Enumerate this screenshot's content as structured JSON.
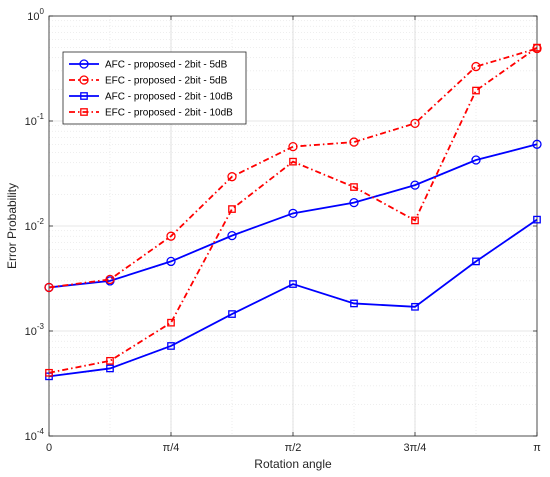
{
  "chart_data": {
    "type": "line",
    "title": "",
    "xlabel": "Rotation angle",
    "ylabel": "Error Probability",
    "xscale": "linear",
    "yscale": "log",
    "xlim": [
      0,
      3.14159
    ],
    "ylim": [
      0.0001,
      1
    ],
    "grid": true,
    "legend_position": "top-left",
    "x_ticks": [
      {
        "value": 0,
        "label": "0"
      },
      {
        "value": 0.785398,
        "label": "π/4"
      },
      {
        "value": 1.570796,
        "label": "π/2"
      },
      {
        "value": 2.356194,
        "label": "3π/4"
      },
      {
        "value": 3.141593,
        "label": "π"
      }
    ],
    "y_ticks": [
      {
        "value": 0.0001,
        "base": "10",
        "exp": "-4"
      },
      {
        "value": 0.001,
        "base": "10",
        "exp": "-3"
      },
      {
        "value": 0.01,
        "base": "10",
        "exp": "-2"
      },
      {
        "value": 0.1,
        "base": "10",
        "exp": "-1"
      },
      {
        "value": 1,
        "base": "10",
        "exp": "0"
      }
    ],
    "x": [
      0,
      0.392699,
      0.785398,
      1.178097,
      1.570796,
      1.963495,
      2.356194,
      2.748894,
      3.141593
    ],
    "series": [
      {
        "name": "AFC - proposed - 2bit - 5dB",
        "color": "#0000ff",
        "marker": "circle",
        "line_style": "solid",
        "values": [
          0.0026,
          0.003,
          0.0046,
          0.0081,
          0.0132,
          0.0167,
          0.0245,
          0.0425,
          0.06
        ]
      },
      {
        "name": "EFC - proposed - 2bit - 5dB",
        "color": "#ff0000",
        "marker": "circle",
        "line_style": "dashdot",
        "values": [
          0.0026,
          0.0031,
          0.008,
          0.0295,
          0.057,
          0.063,
          0.095,
          0.33,
          0.49
        ]
      },
      {
        "name": "AFC - proposed - 2bit - 10dB",
        "color": "#0000ff",
        "marker": "square",
        "line_style": "solid",
        "values": [
          0.00037,
          0.00044,
          0.00072,
          0.00145,
          0.0028,
          0.00183,
          0.0017,
          0.0046,
          0.0115
        ]
      },
      {
        "name": "EFC - proposed - 2bit - 10dB",
        "color": "#ff0000",
        "marker": "square",
        "line_style": "dashdot",
        "values": [
          0.0004,
          0.00052,
          0.0012,
          0.0145,
          0.041,
          0.0235,
          0.0113,
          0.195,
          0.5
        ]
      }
    ]
  }
}
